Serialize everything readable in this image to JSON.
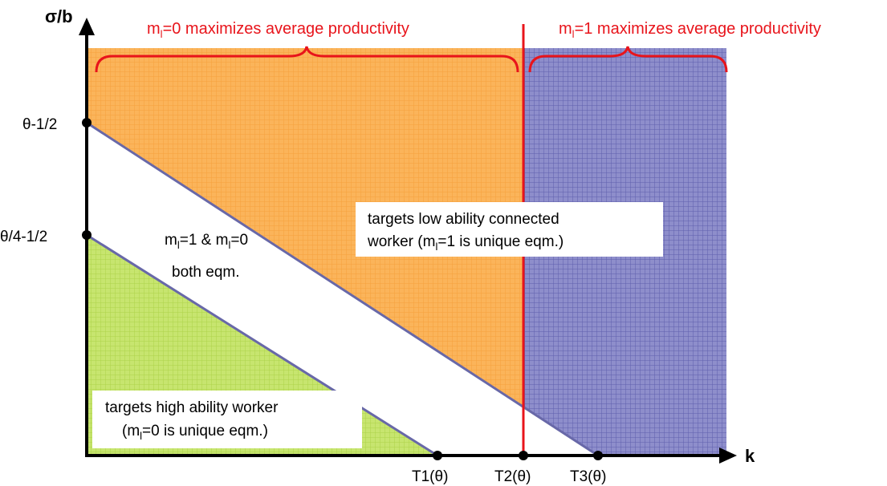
{
  "axes": {
    "y_label": "σ/b",
    "x_label": "k"
  },
  "y_points": [
    "θ-1/2",
    "θ/4-1/2"
  ],
  "x_points": [
    "T1(θ)",
    "T2(θ)",
    "T3(θ)"
  ],
  "headers": [
    {
      "m": "m",
      "sub": "l",
      "rest": "=0 maximizes average productivity"
    },
    {
      "m": "m",
      "sub": "l",
      "rest": "=1 maximizes average productivity"
    }
  ],
  "regions": {
    "low": {
      "line1": "targets low ability connected",
      "line2_start": "worker (m",
      "sub": "l",
      "line2_end": "=1 is unique eqm.)"
    },
    "both": {
      "line1_a": "m",
      "sub1": "l",
      "line1_b": "=1 & m",
      "sub2": "l",
      "line1_c": "=0",
      "line2": "both eqm."
    },
    "high": {
      "line1": "targets high ability worker",
      "line2_start": "(m",
      "sub": "l",
      "line2_end": "=0 is unique eqm.)"
    }
  }
}
